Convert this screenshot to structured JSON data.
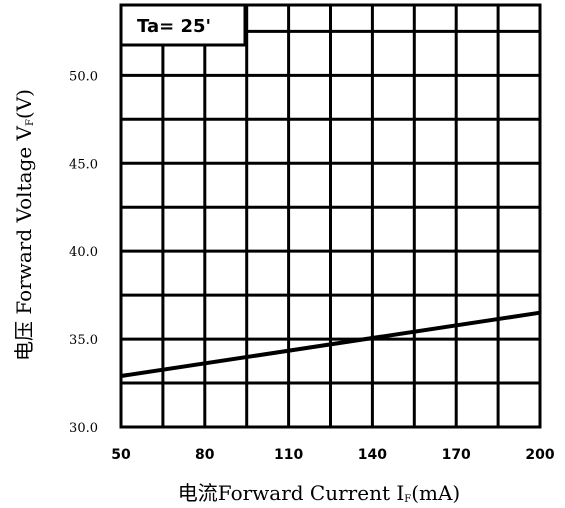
{
  "chart_data": {
    "type": "line",
    "title": "",
    "xlabel": "电流Forward Current I",
    "xlabel_sub": "F",
    "xlabel_unit": "(mA)",
    "ylabel": "电压 Forward Voltage V",
    "ylabel_sub": "F",
    "ylabel_unit": "(V)",
    "annotation": "Ta= 25'",
    "x_tick_labels": [
      "50",
      "80",
      "110",
      "140",
      "170",
      "200"
    ],
    "y_tick_labels": [
      "30.0",
      "35.0",
      "40.0",
      "45.0",
      "50.0"
    ],
    "xlim": [
      50,
      200
    ],
    "ylim": [
      30,
      54
    ],
    "grid": true,
    "series": [
      {
        "x": [
          50,
          200
        ],
        "y": [
          32.9,
          36.5
        ]
      }
    ],
    "colors": {
      "line": "#000000",
      "grid": "#000000",
      "background": "#ffffff"
    }
  }
}
